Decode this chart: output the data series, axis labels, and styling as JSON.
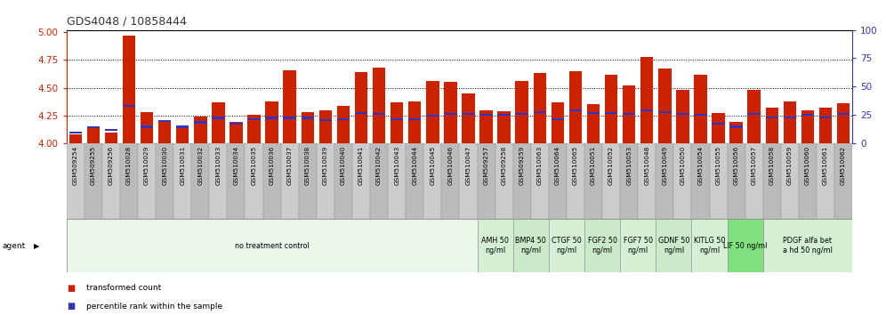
{
  "title": "GDS4048 / 10858444",
  "bar_color": "#cc2200",
  "blue_color": "#3333bb",
  "samples": [
    "GSM509254",
    "GSM509255",
    "GSM509256",
    "GSM510028",
    "GSM510029",
    "GSM510030",
    "GSM510031",
    "GSM510032",
    "GSM510033",
    "GSM510034",
    "GSM510035",
    "GSM510036",
    "GSM510037",
    "GSM510038",
    "GSM510039",
    "GSM510040",
    "GSM510041",
    "GSM510042",
    "GSM510043",
    "GSM510044",
    "GSM510045",
    "GSM510046",
    "GSM510047",
    "GSM509257",
    "GSM509258",
    "GSM509259",
    "GSM510063",
    "GSM510064",
    "GSM510065",
    "GSM510051",
    "GSM510052",
    "GSM510053",
    "GSM510048",
    "GSM510049",
    "GSM510050",
    "GSM510054",
    "GSM510055",
    "GSM510056",
    "GSM510057",
    "GSM510058",
    "GSM510059",
    "GSM510060",
    "GSM510061",
    "GSM510062"
  ],
  "transformed_counts": [
    4.08,
    4.14,
    4.1,
    4.97,
    4.28,
    4.19,
    4.14,
    4.24,
    4.37,
    4.19,
    4.26,
    4.38,
    4.66,
    4.28,
    4.3,
    4.34,
    4.64,
    4.68,
    4.37,
    4.38,
    4.56,
    4.55,
    4.45,
    4.3,
    4.29,
    4.56,
    4.63,
    4.37,
    4.65,
    4.35,
    4.62,
    4.52,
    4.78,
    4.67,
    4.48,
    4.62,
    4.27,
    4.19,
    4.48,
    4.32,
    4.38,
    4.3,
    4.32,
    4.36
  ],
  "percentile_vals": [
    4.09,
    4.135,
    4.11,
    4.33,
    4.14,
    4.19,
    4.14,
    4.18,
    4.22,
    4.17,
    4.21,
    4.22,
    4.22,
    4.22,
    4.2,
    4.21,
    4.265,
    4.255,
    4.21,
    4.21,
    4.24,
    4.255,
    4.255,
    4.245,
    4.245,
    4.255,
    4.27,
    4.21,
    4.285,
    4.265,
    4.265,
    4.255,
    4.285,
    4.27,
    4.255,
    4.245,
    4.17,
    4.14,
    4.255,
    4.225,
    4.225,
    4.245,
    4.225,
    4.255
  ],
  "agent_groups": [
    {
      "label": "no treatment control",
      "start": 0,
      "end": 23,
      "color": "#eaf6ea"
    },
    {
      "label": "AMH 50\nng/ml",
      "start": 23,
      "end": 25,
      "color": "#d4efd4"
    },
    {
      "label": "BMP4 50\nng/ml",
      "start": 25,
      "end": 27,
      "color": "#caeaca"
    },
    {
      "label": "CTGF 50\nng/ml",
      "start": 27,
      "end": 29,
      "color": "#d4efd4"
    },
    {
      "label": "FGF2 50\nng/ml",
      "start": 29,
      "end": 31,
      "color": "#caeaca"
    },
    {
      "label": "FGF7 50\nng/ml",
      "start": 31,
      "end": 33,
      "color": "#d4efd4"
    },
    {
      "label": "GDNF 50\nng/ml",
      "start": 33,
      "end": 35,
      "color": "#caeaca"
    },
    {
      "label": "KITLG 50\nng/ml",
      "start": 35,
      "end": 37,
      "color": "#d4efd4"
    },
    {
      "label": "LIF 50 ng/ml",
      "start": 37,
      "end": 39,
      "color": "#7ee07e"
    },
    {
      "label": "PDGF alfa bet\na hd 50 ng/ml",
      "start": 39,
      "end": 44,
      "color": "#d4efd4"
    }
  ],
  "yticks_left": [
    4.0,
    4.25,
    4.5,
    4.75,
    5.0
  ],
  "ylim_left": [
    4.0,
    5.02
  ],
  "yticks_right": [
    0,
    25,
    50,
    75,
    100
  ],
  "grid_lines": [
    4.25,
    4.5,
    4.75
  ]
}
